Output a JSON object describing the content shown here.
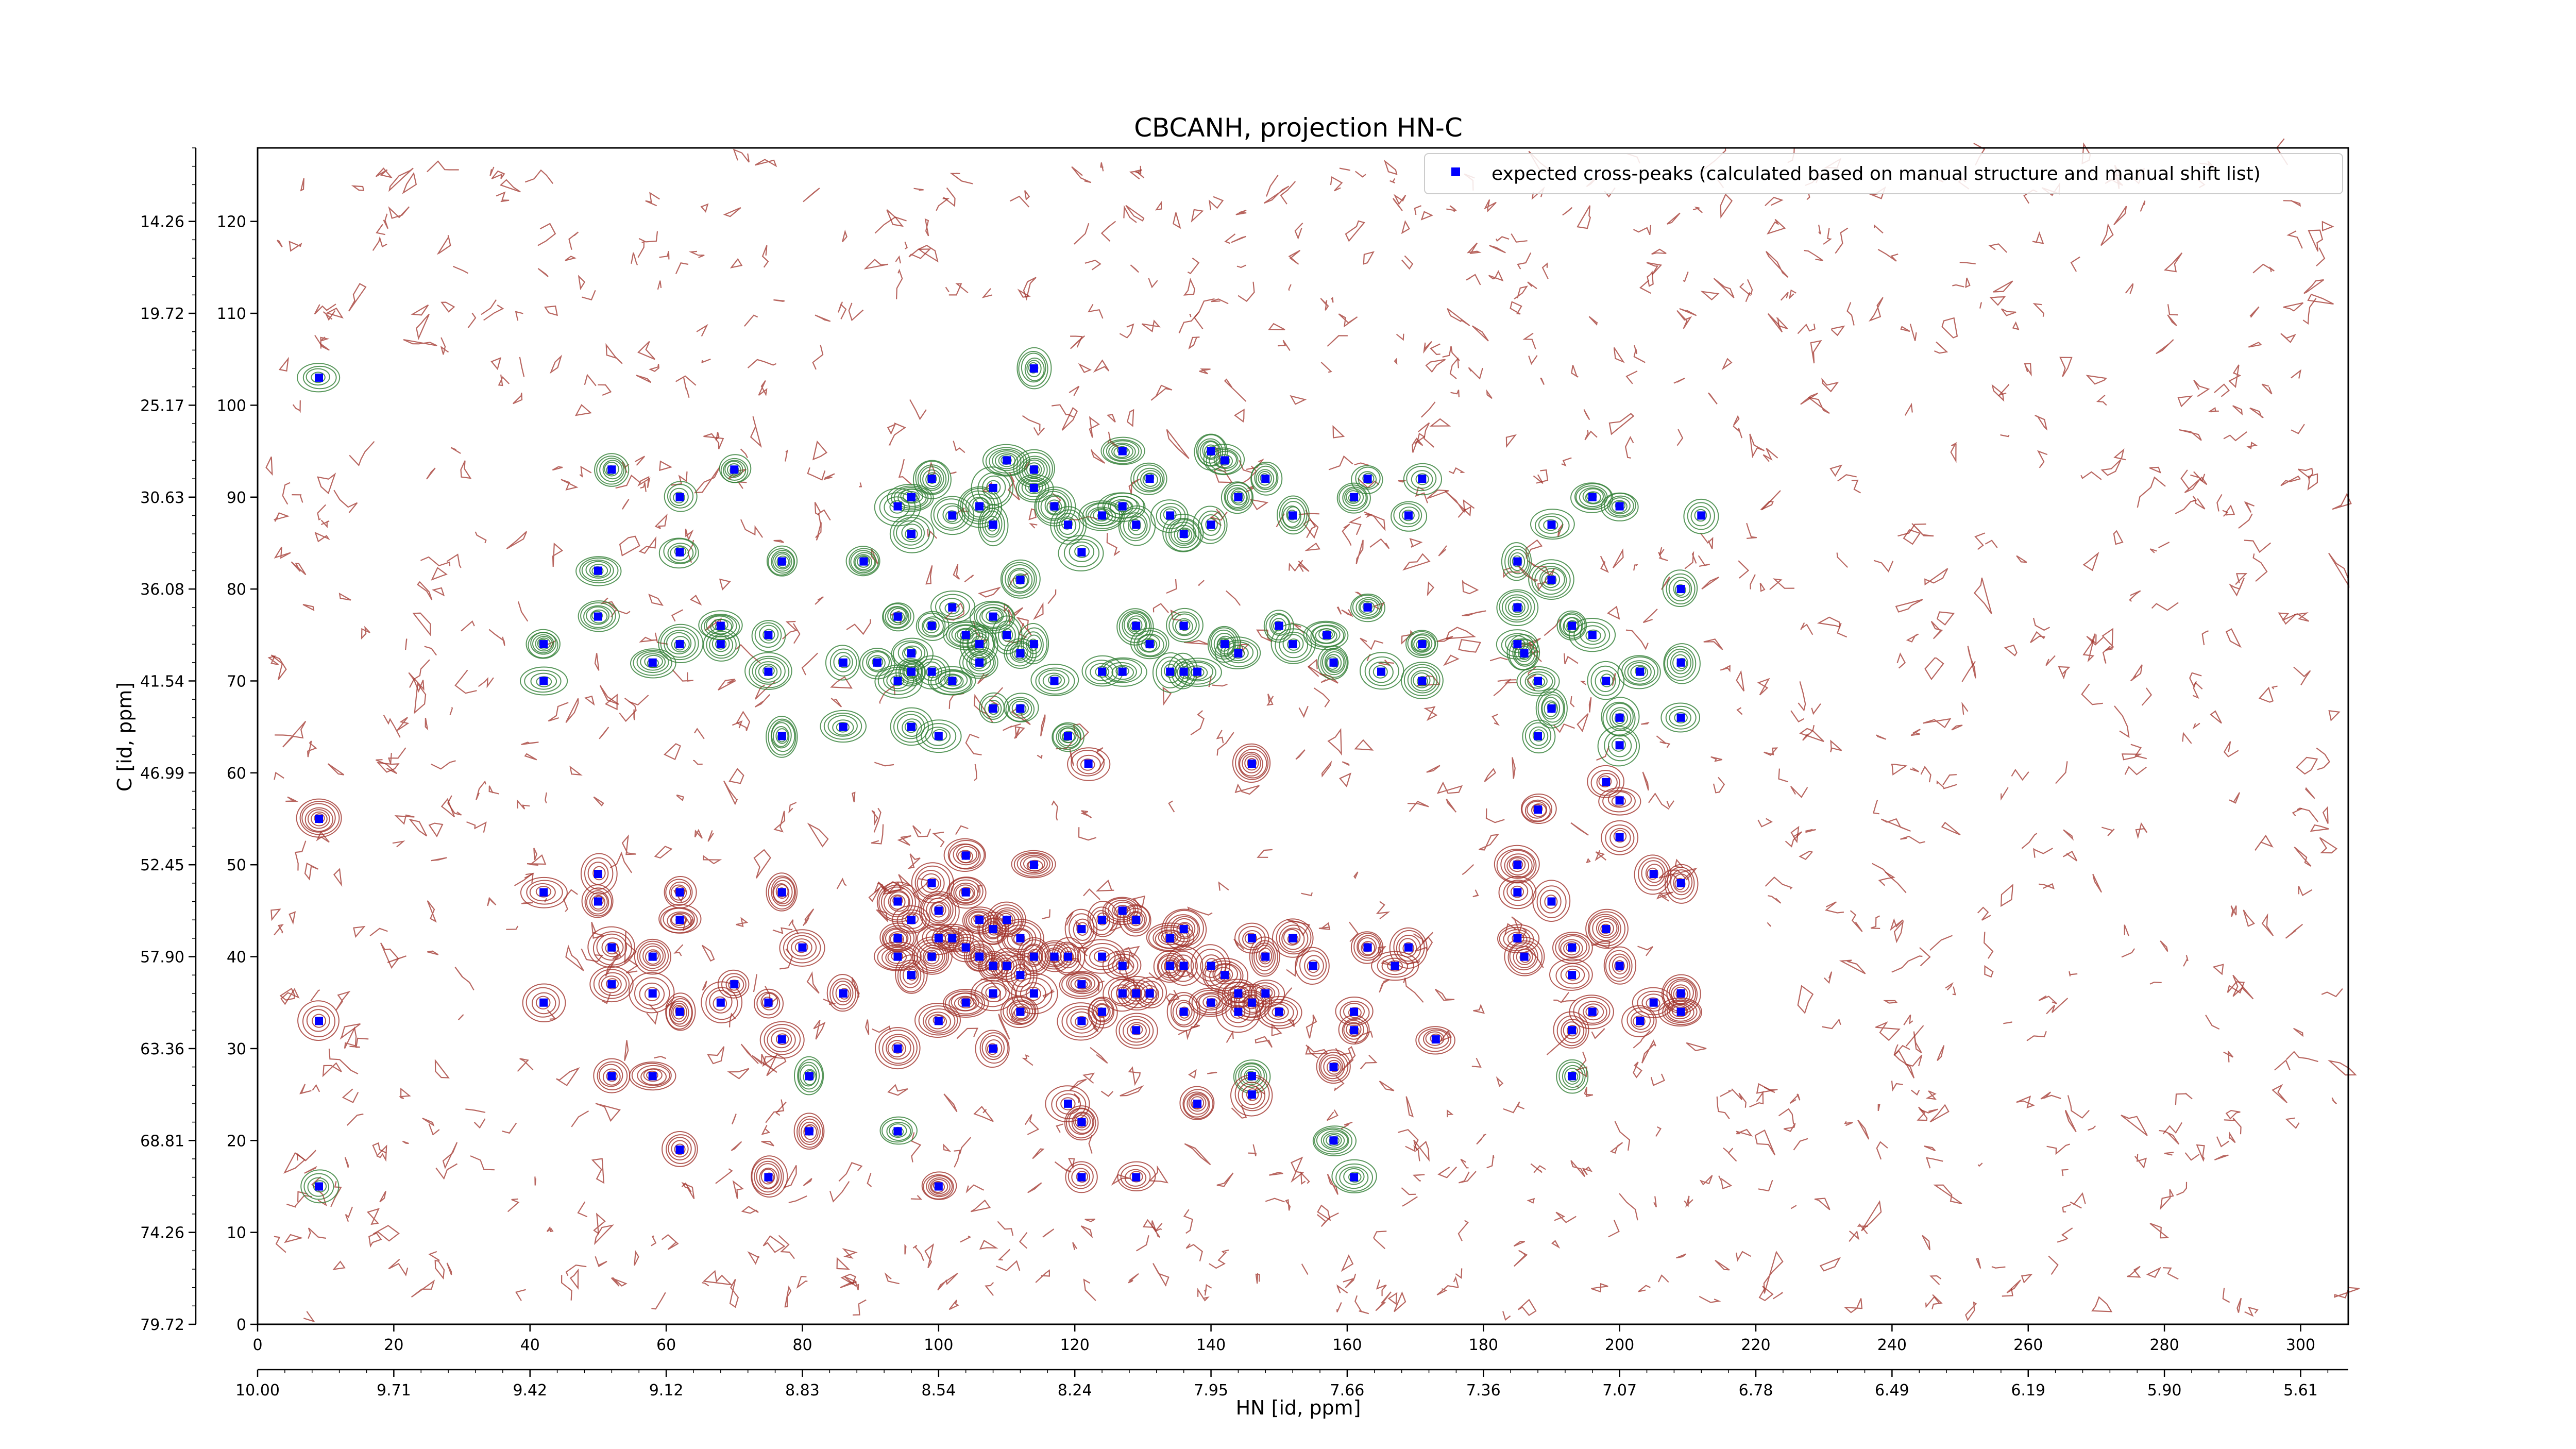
{
  "chart_data": {
    "type": "scatter",
    "title": "CBCANH, projection HN-C",
    "xlabel": "HN [id, ppm]",
    "ylabel": "C [id, ppm]",
    "xlim": [
      0,
      307
    ],
    "ylim": [
      0,
      128
    ],
    "x_ticks": [
      0,
      20,
      40,
      60,
      80,
      100,
      120,
      140,
      160,
      180,
      200,
      220,
      240,
      260,
      280,
      300
    ],
    "y_ticks": [
      0,
      10,
      20,
      30,
      40,
      50,
      60,
      70,
      80,
      90,
      100,
      110,
      120
    ],
    "x_ppm_ticks": [
      "10.00",
      "9.71",
      "9.42",
      "9.12",
      "8.83",
      "8.54",
      "8.24",
      "7.95",
      "7.66",
      "7.36",
      "7.07",
      "6.78",
      "6.49",
      "6.19",
      "5.90",
      "5.61"
    ],
    "y_ppm_ticks": [
      "79.72",
      "74.26",
      "68.81",
      "63.36",
      "57.90",
      "52.45",
      "46.99",
      "41.54",
      "36.08",
      "30.63",
      "25.17",
      "19.72",
      "14.26"
    ],
    "legend": {
      "position": "top-right",
      "label": "expected cross-peaks (calculated based on manual structure and manual shift list)"
    },
    "colors": {
      "points": "#0000ff",
      "contour_positive": "#a0322a",
      "contour_negative": "#2e7d32",
      "axis": "#000000"
    },
    "series": [
      {
        "name": "expected cross-peaks (calculated based on manual structure and manual shift list)",
        "points": [
          [
            9,
            103
          ],
          [
            9,
            55
          ],
          [
            9,
            33
          ],
          [
            9,
            15
          ],
          [
            42,
            74
          ],
          [
            42,
            70
          ],
          [
            42,
            47
          ],
          [
            42,
            35
          ],
          [
            50,
            82
          ],
          [
            50,
            77
          ],
          [
            50,
            49
          ],
          [
            50,
            46
          ],
          [
            52,
            93
          ],
          [
            52,
            41
          ],
          [
            52,
            37
          ],
          [
            52,
            27
          ],
          [
            58,
            72
          ],
          [
            58,
            40
          ],
          [
            58,
            36
          ],
          [
            58,
            27
          ],
          [
            62,
            90
          ],
          [
            62,
            84
          ],
          [
            62,
            74
          ],
          [
            62,
            47
          ],
          [
            62,
            44
          ],
          [
            62,
            34
          ],
          [
            62,
            19
          ],
          [
            68,
            76
          ],
          [
            68,
            74
          ],
          [
            68,
            35
          ],
          [
            70,
            93
          ],
          [
            70,
            37
          ],
          [
            75,
            75
          ],
          [
            75,
            71
          ],
          [
            75,
            35
          ],
          [
            75,
            16
          ],
          [
            77,
            83
          ],
          [
            77,
            64
          ],
          [
            77,
            47
          ],
          [
            77,
            31
          ],
          [
            80,
            41
          ],
          [
            81,
            27
          ],
          [
            81,
            21
          ],
          [
            86,
            72
          ],
          [
            86,
            65
          ],
          [
            86,
            36
          ],
          [
            89,
            83
          ],
          [
            91,
            72
          ],
          [
            94,
            89
          ],
          [
            94,
            77
          ],
          [
            94,
            70
          ],
          [
            94,
            46
          ],
          [
            94,
            42
          ],
          [
            94,
            40
          ],
          [
            94,
            30
          ],
          [
            94,
            21
          ],
          [
            96,
            90
          ],
          [
            96,
            86
          ],
          [
            96,
            73
          ],
          [
            96,
            71
          ],
          [
            96,
            65
          ],
          [
            96,
            44
          ],
          [
            96,
            38
          ],
          [
            99,
            92
          ],
          [
            99,
            76
          ],
          [
            99,
            71
          ],
          [
            99,
            48
          ],
          [
            99,
            40
          ],
          [
            100,
            64
          ],
          [
            100,
            45
          ],
          [
            100,
            42
          ],
          [
            100,
            33
          ],
          [
            100,
            15
          ],
          [
            102,
            88
          ],
          [
            102,
            78
          ],
          [
            102,
            70
          ],
          [
            102,
            42
          ],
          [
            104,
            75
          ],
          [
            104,
            51
          ],
          [
            104,
            47
          ],
          [
            104,
            41
          ],
          [
            104,
            35
          ],
          [
            106,
            89
          ],
          [
            106,
            74
          ],
          [
            106,
            72
          ],
          [
            106,
            44
          ],
          [
            106,
            40
          ],
          [
            108,
            91
          ],
          [
            108,
            87
          ],
          [
            108,
            77
          ],
          [
            108,
            67
          ],
          [
            108,
            43
          ],
          [
            108,
            39
          ],
          [
            108,
            36
          ],
          [
            108,
            30
          ],
          [
            110,
            94
          ],
          [
            110,
            75
          ],
          [
            110,
            44
          ],
          [
            110,
            39
          ],
          [
            112,
            81
          ],
          [
            112,
            73
          ],
          [
            112,
            67
          ],
          [
            112,
            42
          ],
          [
            112,
            38
          ],
          [
            112,
            34
          ],
          [
            114,
            104
          ],
          [
            114,
            93
          ],
          [
            114,
            91
          ],
          [
            114,
            74
          ],
          [
            114,
            50
          ],
          [
            114,
            40
          ],
          [
            114,
            36
          ],
          [
            117,
            89
          ],
          [
            117,
            70
          ],
          [
            117,
            40
          ],
          [
            119,
            87
          ],
          [
            119,
            64
          ],
          [
            119,
            40
          ],
          [
            119,
            24
          ],
          [
            121,
            84
          ],
          [
            121,
            43
          ],
          [
            121,
            37
          ],
          [
            121,
            33
          ],
          [
            121,
            22
          ],
          [
            121,
            16
          ],
          [
            122,
            61
          ],
          [
            124,
            88
          ],
          [
            124,
            71
          ],
          [
            124,
            44
          ],
          [
            124,
            40
          ],
          [
            124,
            34
          ],
          [
            127,
            95
          ],
          [
            127,
            89
          ],
          [
            127,
            71
          ],
          [
            127,
            45
          ],
          [
            127,
            39
          ],
          [
            127,
            36
          ],
          [
            129,
            87
          ],
          [
            129,
            76
          ],
          [
            129,
            44
          ],
          [
            129,
            36
          ],
          [
            129,
            32
          ],
          [
            129,
            16
          ],
          [
            131,
            92
          ],
          [
            131,
            74
          ],
          [
            131,
            36
          ],
          [
            134,
            88
          ],
          [
            134,
            71
          ],
          [
            134,
            42
          ],
          [
            134,
            39
          ],
          [
            136,
            86
          ],
          [
            136,
            76
          ],
          [
            136,
            71
          ],
          [
            136,
            43
          ],
          [
            136,
            39
          ],
          [
            136,
            34
          ],
          [
            138,
            71
          ],
          [
            138,
            24
          ],
          [
            140,
            95
          ],
          [
            140,
            87
          ],
          [
            140,
            39
          ],
          [
            140,
            35
          ],
          [
            142,
            94
          ],
          [
            142,
            74
          ],
          [
            142,
            38
          ],
          [
            144,
            90
          ],
          [
            144,
            73
          ],
          [
            144,
            36
          ],
          [
            144,
            34
          ],
          [
            146,
            61
          ],
          [
            146,
            42
          ],
          [
            146,
            35
          ],
          [
            146,
            27
          ],
          [
            146,
            25
          ],
          [
            148,
            92
          ],
          [
            148,
            40
          ],
          [
            148,
            36
          ],
          [
            150,
            76
          ],
          [
            150,
            34
          ],
          [
            152,
            88
          ],
          [
            152,
            74
          ],
          [
            152,
            42
          ],
          [
            155,
            39
          ],
          [
            157,
            75
          ],
          [
            158,
            72
          ],
          [
            158,
            28
          ],
          [
            158,
            20
          ],
          [
            161,
            90
          ],
          [
            161,
            34
          ],
          [
            161,
            32
          ],
          [
            161,
            16
          ],
          [
            163,
            92
          ],
          [
            163,
            78
          ],
          [
            163,
            41
          ],
          [
            165,
            71
          ],
          [
            167,
            39
          ],
          [
            169,
            88
          ],
          [
            169,
            41
          ],
          [
            171,
            92
          ],
          [
            171,
            74
          ],
          [
            171,
            70
          ],
          [
            173,
            31
          ],
          [
            185,
            83
          ],
          [
            185,
            78
          ],
          [
            185,
            74
          ],
          [
            185,
            50
          ],
          [
            185,
            47
          ],
          [
            185,
            42
          ],
          [
            186,
            73
          ],
          [
            186,
            40
          ],
          [
            188,
            70
          ],
          [
            188,
            64
          ],
          [
            188,
            56
          ],
          [
            190,
            87
          ],
          [
            190,
            81
          ],
          [
            190,
            67
          ],
          [
            190,
            46
          ],
          [
            193,
            76
          ],
          [
            193,
            41
          ],
          [
            193,
            38
          ],
          [
            193,
            32
          ],
          [
            193,
            27
          ],
          [
            196,
            90
          ],
          [
            196,
            75
          ],
          [
            196,
            34
          ],
          [
            198,
            70
          ],
          [
            198,
            59
          ],
          [
            198,
            43
          ],
          [
            200,
            89
          ],
          [
            200,
            66
          ],
          [
            200,
            63
          ],
          [
            200,
            57
          ],
          [
            200,
            53
          ],
          [
            200,
            39
          ],
          [
            203,
            71
          ],
          [
            203,
            33
          ],
          [
            205,
            49
          ],
          [
            205,
            35
          ],
          [
            209,
            80
          ],
          [
            209,
            72
          ],
          [
            209,
            66
          ],
          [
            209,
            48
          ],
          [
            209,
            36
          ],
          [
            209,
            34
          ],
          [
            212,
            88
          ]
        ]
      }
    ]
  }
}
